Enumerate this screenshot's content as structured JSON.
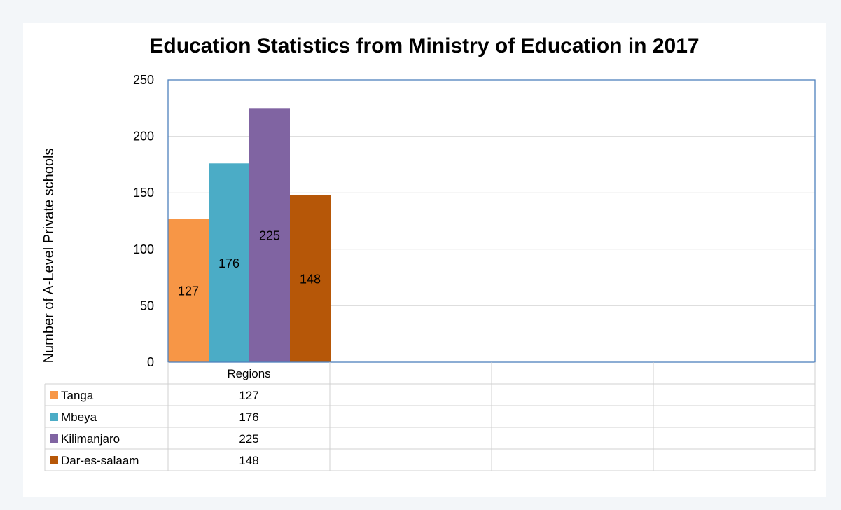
{
  "chart_data": {
    "type": "bar",
    "title": "Education Statistics from Ministry of Education in 2017",
    "ylabel": "Number of A-Level Private schools",
    "xlabel": "",
    "categories": [
      "Regions"
    ],
    "series": [
      {
        "name": "Tanga",
        "values": [
          127
        ],
        "color": "#f79646"
      },
      {
        "name": "Mbeya",
        "values": [
          176
        ],
        "color": "#4bacc6"
      },
      {
        "name": "Kilimanjaro",
        "values": [
          225
        ],
        "color": "#8064a2"
      },
      {
        "name": "Dar-es-salaam",
        "values": [
          148
        ],
        "color": "#b65708"
      }
    ],
    "ylim": [
      0,
      250
    ],
    "yticks": [
      0,
      50,
      100,
      150,
      200,
      250
    ],
    "grid": true,
    "data_labels": true,
    "data_table": true,
    "plot_border_color": "#4f81bd"
  }
}
